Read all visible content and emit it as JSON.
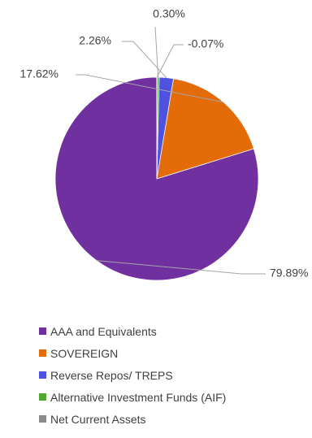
{
  "chart_data": {
    "type": "pie",
    "categories": [
      "AAA and Equivalents",
      "SOVEREIGN",
      "Reverse Repos/ TREPS",
      "Alternative Investment Funds (AIF)",
      "Net Current Assets"
    ],
    "values": [
      79.89,
      17.62,
      2.26,
      0.3,
      -0.07
    ],
    "labels": [
      "79.89%",
      "17.62%",
      "2.26%",
      "0.30%",
      "-0.07%"
    ],
    "colors": [
      "#7030a0",
      "#e36c09",
      "#4f51e0",
      "#4ea72e",
      "#8c8c8c"
    ],
    "title": "",
    "legend_position": "bottom"
  },
  "legend": {
    "items": [
      {
        "label": "AAA and Equivalents",
        "color": "#7030a0"
      },
      {
        "label": "SOVEREIGN",
        "color": "#e36c09"
      },
      {
        "label": "Reverse Repos/ TREPS",
        "color": "#4f51e0"
      },
      {
        "label": "Alternative Investment Funds (AIF)",
        "color": "#4ea72e"
      },
      {
        "label": "Net Current Assets",
        "color": "#8c8c8c"
      }
    ]
  }
}
